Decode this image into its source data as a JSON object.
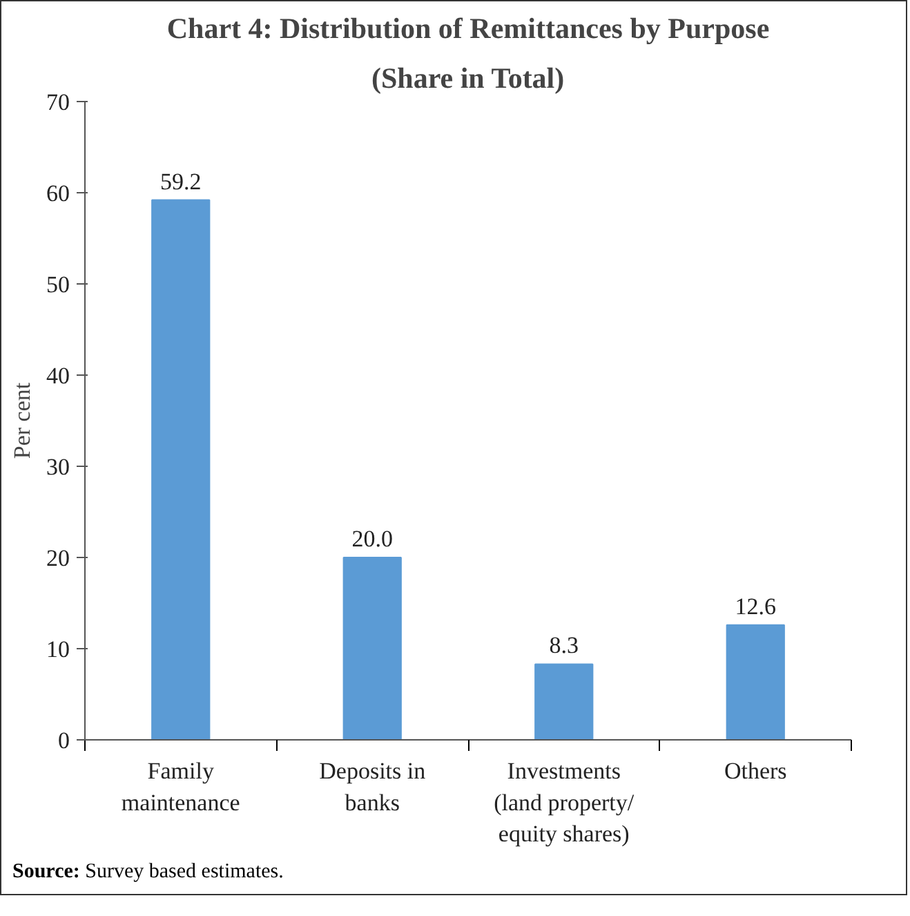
{
  "chart_data": {
    "type": "bar",
    "title": "Chart 4: Distribution of Remittances by Purpose",
    "subtitle": "(Share in Total)",
    "ylabel": "Per cent",
    "categories": [
      "Family maintenance",
      "Deposits in banks",
      "Investments (land property/ equity shares)",
      "Others"
    ],
    "values": [
      59.2,
      20.0,
      8.3,
      12.6
    ],
    "color": "#5b9bd5",
    "value_labels": [
      "59.2",
      "20.0",
      "8.3",
      "12.6"
    ],
    "ylim": [
      0,
      70
    ],
    "yticks": [
      0,
      10,
      20,
      30,
      40,
      50,
      60,
      70
    ],
    "grid": false,
    "annotations": [
      "Source: Survey based estimates."
    ]
  }
}
